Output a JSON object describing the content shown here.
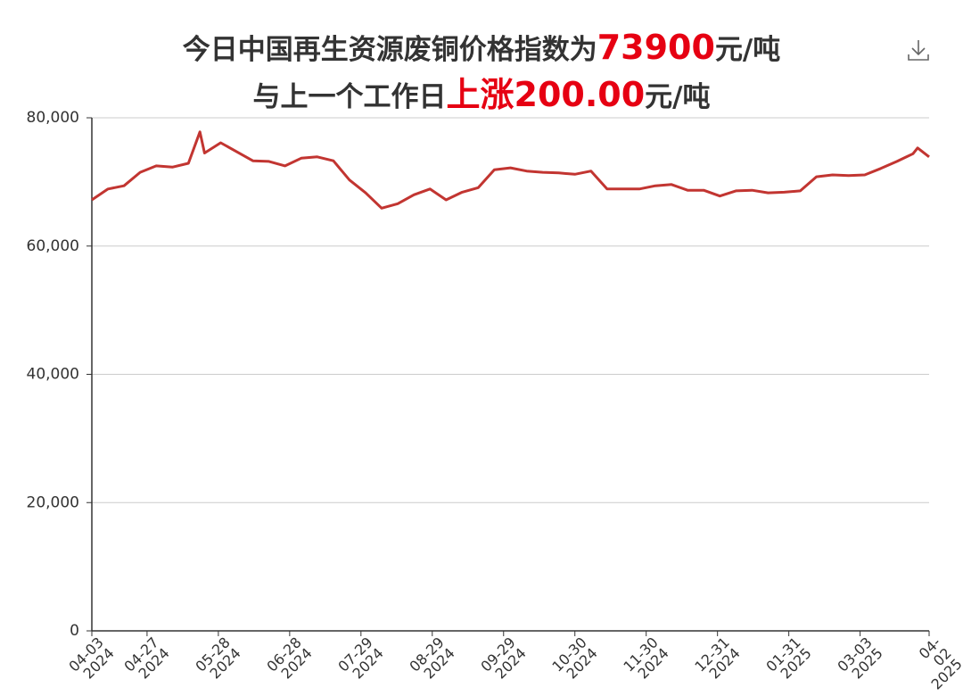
{
  "chart_data": {
    "type": "line",
    "title_parts": [
      "今日中国再生资源废铜价格指数为",
      "73900",
      "元/吨"
    ],
    "subtitle_parts": [
      "与上一个工作日",
      "上涨200.00",
      "元/吨"
    ],
    "color": "#c23531",
    "highlight_color": "#e60012",
    "grid": true,
    "x": [
      "2024-04-03",
      "2024-04-10",
      "2024-04-17",
      "2024-04-24",
      "2024-05-01",
      "2024-05-08",
      "2024-05-15",
      "2024-05-20",
      "2024-05-22",
      "2024-05-29",
      "2024-06-05",
      "2024-06-12",
      "2024-06-19",
      "2024-06-26",
      "2024-07-03",
      "2024-07-10",
      "2024-07-17",
      "2024-07-24",
      "2024-07-31",
      "2024-08-07",
      "2024-08-14",
      "2024-08-21",
      "2024-08-28",
      "2024-09-04",
      "2024-09-11",
      "2024-09-18",
      "2024-09-25",
      "2024-10-02",
      "2024-10-09",
      "2024-10-16",
      "2024-10-23",
      "2024-10-30",
      "2024-11-06",
      "2024-11-13",
      "2024-11-20",
      "2024-11-27",
      "2024-12-04",
      "2024-12-11",
      "2024-12-18",
      "2024-12-25",
      "2025-01-01",
      "2025-01-08",
      "2025-01-15",
      "2025-01-22",
      "2025-01-29",
      "2025-02-05",
      "2025-02-12",
      "2025-02-19",
      "2025-02-26",
      "2025-03-05",
      "2025-03-12",
      "2025-03-19",
      "2025-03-26",
      "2025-03-28",
      "2025-04-02"
    ],
    "values": [
      67200,
      68900,
      69400,
      71500,
      72500,
      72300,
      72900,
      77800,
      74500,
      76100,
      74700,
      73300,
      73200,
      72500,
      73700,
      73900,
      73300,
      70300,
      68300,
      65900,
      66600,
      68000,
      68900,
      67200,
      68400,
      69100,
      71900,
      72200,
      71700,
      71500,
      71400,
      71200,
      71700,
      68900,
      68900,
      68900,
      69400,
      69600,
      68700,
      68700,
      67800,
      68600,
      68700,
      68300,
      68400,
      68600,
      70800,
      71100,
      71000,
      71100,
      72100,
      73200,
      74400,
      75300,
      73900
    ],
    "xlim": [
      "2024-04-03",
      "2025-04-02"
    ],
    "xticks": [
      {
        "value": "2024-04-03",
        "label": "04-03\n2024"
      },
      {
        "value": "2024-04-27",
        "label": "04-27\n2024"
      },
      {
        "value": "2024-05-28",
        "label": "05-28\n2024"
      },
      {
        "value": "2024-06-28",
        "label": "06-28\n2024"
      },
      {
        "value": "2024-07-29",
        "label": "07-29\n2024"
      },
      {
        "value": "2024-08-29",
        "label": "08-29\n2024"
      },
      {
        "value": "2024-09-29",
        "label": "09-29\n2024"
      },
      {
        "value": "2024-10-30",
        "label": "10-30\n2024"
      },
      {
        "value": "2024-11-30",
        "label": "11-30\n2024"
      },
      {
        "value": "2024-12-31",
        "label": "12-31\n2024"
      },
      {
        "value": "2025-01-31",
        "label": "01-31\n2025"
      },
      {
        "value": "2025-03-03",
        "label": "03-03\n2025"
      },
      {
        "value": "2025-04-02",
        "label": "04-02\n2025"
      }
    ],
    "ylim": [
      0,
      80000
    ],
    "yticks": [
      0,
      {
        "value": 20000,
        "label": "20,000"
      },
      {
        "value": 40000,
        "label": "40,000"
      },
      {
        "value": 60000,
        "label": "60,000"
      },
      {
        "value": 80000,
        "label": "80,000"
      }
    ]
  }
}
